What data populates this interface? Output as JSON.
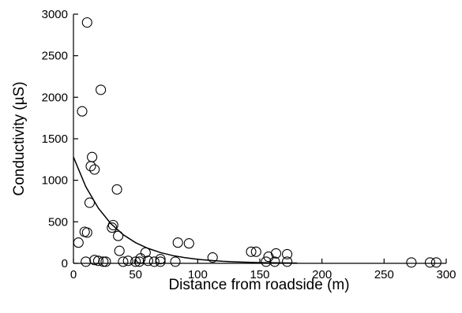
{
  "chart_data": {
    "type": "scatter",
    "xlabel": "Distance from roadside (m)",
    "ylabel": "Conductivity (µS)",
    "xlim": [
      0,
      300
    ],
    "ylim": [
      0,
      3000
    ],
    "xticks": [
      0,
      50,
      100,
      150,
      200,
      250,
      300
    ],
    "yticks": [
      0,
      500,
      1000,
      1500,
      2000,
      2500,
      3000
    ],
    "grid": false,
    "marker": "open-circle",
    "points": [
      {
        "x": 11,
        "y": 2900
      },
      {
        "x": 22,
        "y": 2090
      },
      {
        "x": 7,
        "y": 1830
      },
      {
        "x": 15,
        "y": 1280
      },
      {
        "x": 14,
        "y": 1170
      },
      {
        "x": 17,
        "y": 1130
      },
      {
        "x": 35,
        "y": 890
      },
      {
        "x": 13,
        "y": 730
      },
      {
        "x": 32,
        "y": 460
      },
      {
        "x": 31,
        "y": 430
      },
      {
        "x": 9,
        "y": 380
      },
      {
        "x": 11,
        "y": 370
      },
      {
        "x": 36,
        "y": 330
      },
      {
        "x": 4,
        "y": 250
      },
      {
        "x": 84,
        "y": 250
      },
      {
        "x": 93,
        "y": 240
      },
      {
        "x": 37,
        "y": 150
      },
      {
        "x": 143,
        "y": 140
      },
      {
        "x": 147,
        "y": 140
      },
      {
        "x": 58,
        "y": 130
      },
      {
        "x": 163,
        "y": 120
      },
      {
        "x": 172,
        "y": 110
      },
      {
        "x": 157,
        "y": 80
      },
      {
        "x": 112,
        "y": 70
      },
      {
        "x": 54,
        "y": 60
      },
      {
        "x": 70,
        "y": 50
      },
      {
        "x": 17,
        "y": 40
      },
      {
        "x": 20,
        "y": 30
      },
      {
        "x": 44,
        "y": 30
      },
      {
        "x": 60,
        "y": 30
      },
      {
        "x": 10,
        "y": 20
      },
      {
        "x": 24,
        "y": 20
      },
      {
        "x": 26,
        "y": 20
      },
      {
        "x": 40,
        "y": 20
      },
      {
        "x": 50,
        "y": 20
      },
      {
        "x": 53,
        "y": 20
      },
      {
        "x": 65,
        "y": 20
      },
      {
        "x": 70,
        "y": 20
      },
      {
        "x": 82,
        "y": 20
      },
      {
        "x": 155,
        "y": 20
      },
      {
        "x": 162,
        "y": 20
      },
      {
        "x": 172,
        "y": 20
      },
      {
        "x": 272,
        "y": 10
      },
      {
        "x": 287,
        "y": 10
      },
      {
        "x": 292,
        "y": 10
      }
    ],
    "fit": {
      "type": "exponential",
      "x": [
        0,
        10,
        20,
        30,
        40,
        50,
        60,
        70,
        80,
        90,
        100,
        110,
        120,
        130,
        140,
        150,
        160,
        170,
        180
      ],
      "y": [
        1280,
        922,
        665,
        479,
        346,
        249,
        180,
        130,
        93,
        67,
        48,
        35,
        25,
        18,
        13,
        9,
        7,
        5,
        4
      ]
    }
  }
}
